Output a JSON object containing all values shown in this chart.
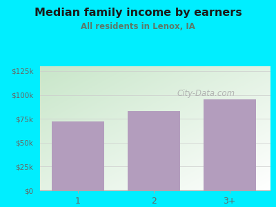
{
  "title": "Median family income by earners",
  "subtitle": "All residents in Lenox, IA",
  "categories": [
    "1",
    "2",
    "3+"
  ],
  "values": [
    72000,
    83000,
    95000
  ],
  "bar_color": "#b39dbd",
  "background_color": "#00eeff",
  "plot_bg_top_left": "#c8e6c9",
  "plot_bg_bottom_right": "#ffffff",
  "title_color": "#1a1a1a",
  "subtitle_color": "#5a7a6a",
  "axis_color": "#666666",
  "yticks": [
    0,
    25000,
    50000,
    75000,
    100000,
    125000
  ],
  "ytick_labels": [
    "$0",
    "$25k",
    "$50k",
    "$75k",
    "$100k",
    "$125k"
  ],
  "ylim": [
    0,
    130000
  ],
  "watermark": "City-Data.com"
}
